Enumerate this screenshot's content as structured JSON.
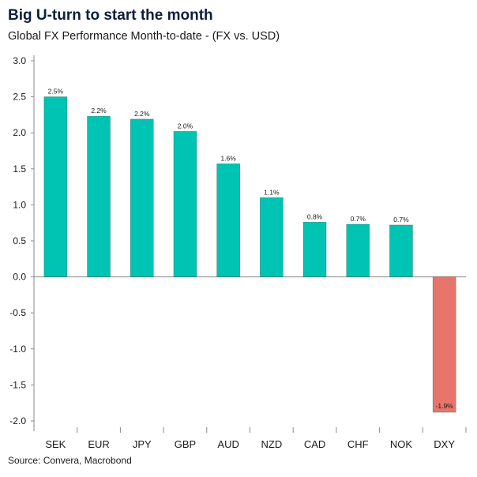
{
  "header": {
    "title": "Big U-turn to start the month",
    "subtitle": "Global FX Performance Month-to-date - (FX vs. USD)"
  },
  "footer": {
    "source": "Source: Convera, Macrobond"
  },
  "colors": {
    "positive": "#00C4B3",
    "negative": "#E8756B",
    "axis": "#8a8a8a"
  },
  "chart_data": {
    "type": "bar",
    "title": "Big U-turn to start the month",
    "subtitle": "Global FX Performance Month-to-date - (FX vs. USD)",
    "xlabel": "",
    "ylabel": "",
    "categories": [
      "SEK",
      "EUR",
      "JPY",
      "GBP",
      "AUD",
      "NZD",
      "CAD",
      "CHF",
      "NOK",
      "DXY"
    ],
    "values": [
      2.5,
      2.23,
      2.19,
      2.02,
      1.57,
      1.1,
      0.76,
      0.73,
      0.72,
      -1.88
    ],
    "data_labels": [
      "2.5%",
      "2.2%",
      "2.2%",
      "2.0%",
      "1.6%",
      "1.1%",
      "0.8%",
      "0.7%",
      "0.7%",
      "-1.9%"
    ],
    "ylim": [
      -2.0,
      3.0
    ],
    "yticks": [
      3.0,
      2.5,
      2.0,
      1.5,
      1.0,
      0.5,
      0.0,
      -0.5,
      -1.0,
      -1.5,
      -2.0
    ],
    "ytick_labels": [
      "3.0",
      "2.5",
      "2.0",
      "1.5",
      "1.0",
      "0.5",
      "0.0",
      "-0.5",
      "-1.0",
      "-1.5",
      "-2.0"
    ],
    "grid": false,
    "legend": "none"
  }
}
